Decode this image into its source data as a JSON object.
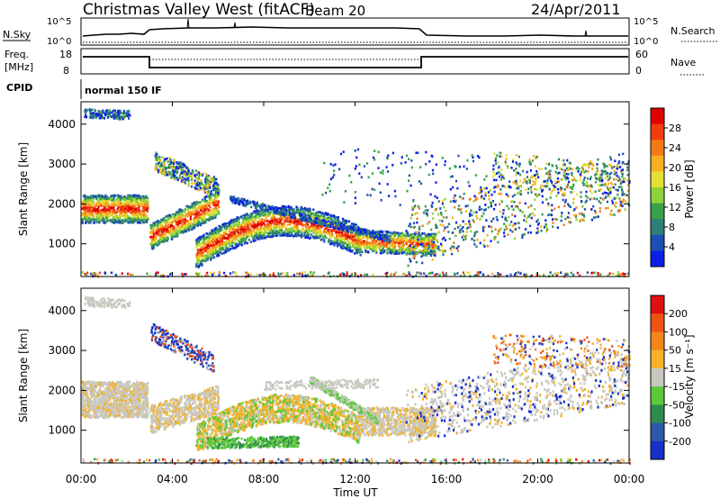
{
  "header": {
    "station": "Christmas Valley West (fitACF)",
    "beam": "Beam 20",
    "date": "24/Apr/2011"
  },
  "top_panels": {
    "nsky_label": "N.Sky",
    "nsearch_label": "N.Search",
    "nsky_ticks": [
      "10^5",
      "10^0"
    ],
    "nsearch_ticks": [
      "10^5",
      "10^0"
    ],
    "freq_label_1": "Freq.",
    "freq_label_2": "[MHz]",
    "freq_ticks": [
      "18",
      "8"
    ],
    "nave_label": "Nave",
    "nave_ticks": [
      "60",
      "0"
    ],
    "cpid_label": "CPID",
    "cpid_value": "normal 150 IF"
  },
  "axes": {
    "ylabel": "Slant Range [km]",
    "xlabel": "Time UT",
    "x_ticks": [
      "00:00",
      "04:00",
      "08:00",
      "12:00",
      "16:00",
      "20:00",
      "00:00"
    ],
    "y_ticks": [
      "1000",
      "2000",
      "3000",
      "4000"
    ],
    "x_range_hours": [
      0,
      24
    ],
    "y_range_km": [
      180,
      4560
    ]
  },
  "chart_data": [
    {
      "type": "heatmap",
      "name": "power",
      "colorbar_label": "Power [dB]",
      "colorbar_ticks": [
        "4",
        "8",
        "12",
        "16",
        "20",
        "24",
        "28"
      ],
      "colors": [
        "#0a1ee6",
        "#1d4fb4",
        "#2f7f7a",
        "#3aa04a",
        "#8ed339",
        "#e2e034",
        "#f6b021",
        "#f57a17",
        "#ef3c10",
        "#e00000"
      ],
      "range_db": [
        0,
        30
      ]
    },
    {
      "type": "heatmap",
      "name": "velocity",
      "colorbar_label": "Velocity [m s⁻¹]",
      "colorbar_ticks": [
        "200",
        "100",
        "50",
        "15",
        "-15",
        "-50",
        "-100",
        "-200"
      ],
      "colors": [
        "#1630c8",
        "#2f59a8",
        "#2e8c4e",
        "#5dc83a",
        "#c8c8c0",
        "#f3b22a",
        "#f2861d",
        "#ee5215",
        "#e01010"
      ],
      "range_ms": [
        -250,
        250
      ]
    }
  ]
}
